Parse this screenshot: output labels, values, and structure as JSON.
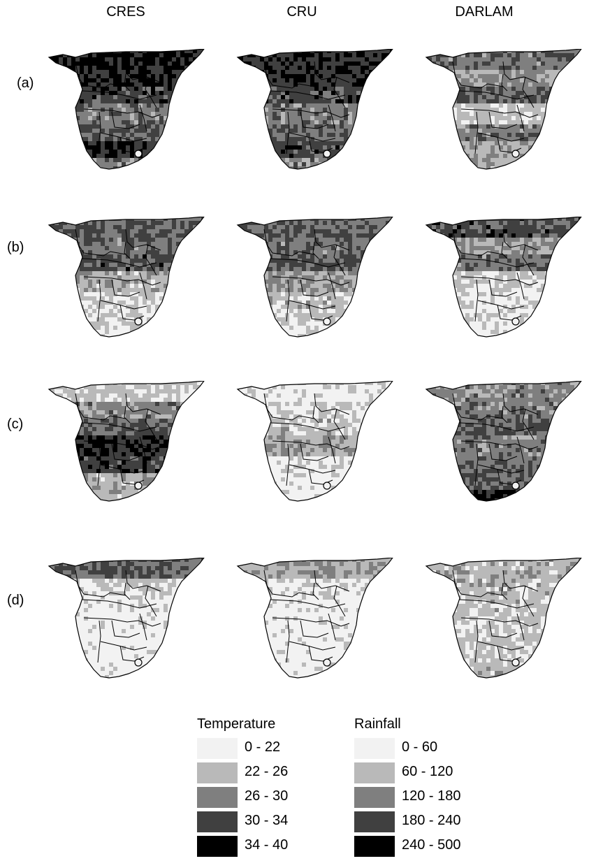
{
  "columns": [
    "CRES",
    "CRU",
    "DARLAM"
  ],
  "rows": [
    "(a)",
    "(b)",
    "(c)",
    "(d)"
  ],
  "palette": {
    "class0": "#f2f2f2",
    "class1": "#b9b9b9",
    "class2": "#7f7f7f",
    "class3": "#404040",
    "class4": "#000000"
  },
  "panels": [
    [
      {
        "shading": [
          0.88,
          0.82,
          0.72,
          0.5,
          0.62,
          0.78,
          0.5
        ]
      },
      {
        "shading": [
          0.8,
          0.78,
          0.7,
          0.5,
          0.58,
          0.72,
          0.45
        ]
      },
      {
        "shading": [
          0.55,
          0.4,
          0.6,
          0.2,
          0.5,
          0.35,
          0.3
        ]
      }
    ],
    [
      {
        "shading": [
          0.6,
          0.55,
          0.68,
          0.3,
          0.2,
          0.15,
          0.1
        ]
      },
      {
        "shading": [
          0.58,
          0.55,
          0.62,
          0.35,
          0.25,
          0.2,
          0.1
        ]
      },
      {
        "shading": [
          0.7,
          0.4,
          0.55,
          0.15,
          0.1,
          0.1,
          0.05
        ]
      }
    ],
    [
      {
        "shading": [
          0.2,
          0.45,
          0.62,
          0.82,
          0.72,
          0.3,
          0.25
        ]
      },
      {
        "shading": [
          0.05,
          0.15,
          0.22,
          0.35,
          0.1,
          0.05,
          0.05
        ]
      },
      {
        "shading": [
          0.45,
          0.5,
          0.62,
          0.5,
          0.6,
          0.6,
          0.85
        ]
      }
    ],
    [
      {
        "shading": [
          0.62,
          0.2,
          0.05,
          0.02,
          0.02,
          0.02,
          0.02
        ]
      },
      {
        "shading": [
          0.35,
          0.1,
          0.05,
          0.02,
          0.02,
          0.02,
          0.02
        ]
      },
      {
        "shading": [
          0.3,
          0.25,
          0.22,
          0.2,
          0.2,
          0.18,
          0.3
        ]
      }
    ]
  ],
  "legend": {
    "temperature": {
      "title": "Temperature",
      "items": [
        {
          "label": "0 - 22",
          "color": "#f2f2f2"
        },
        {
          "label": "22 - 26",
          "color": "#b9b9b9"
        },
        {
          "label": "26 - 30",
          "color": "#7f7f7f"
        },
        {
          "label": "30 - 34",
          "color": "#404040"
        },
        {
          "label": "34 - 40",
          "color": "#000000"
        }
      ]
    },
    "rainfall": {
      "title": "Rainfall",
      "items": [
        {
          "label": "0 - 60",
          "color": "#f2f2f2"
        },
        {
          "label": "60 - 120",
          "color": "#b9b9b9"
        },
        {
          "label": "120 - 180",
          "color": "#7f7f7f"
        },
        {
          "label": "180 - 240",
          "color": "#404040"
        },
        {
          "label": "240 - 500",
          "color": "#000000"
        }
      ]
    }
  }
}
